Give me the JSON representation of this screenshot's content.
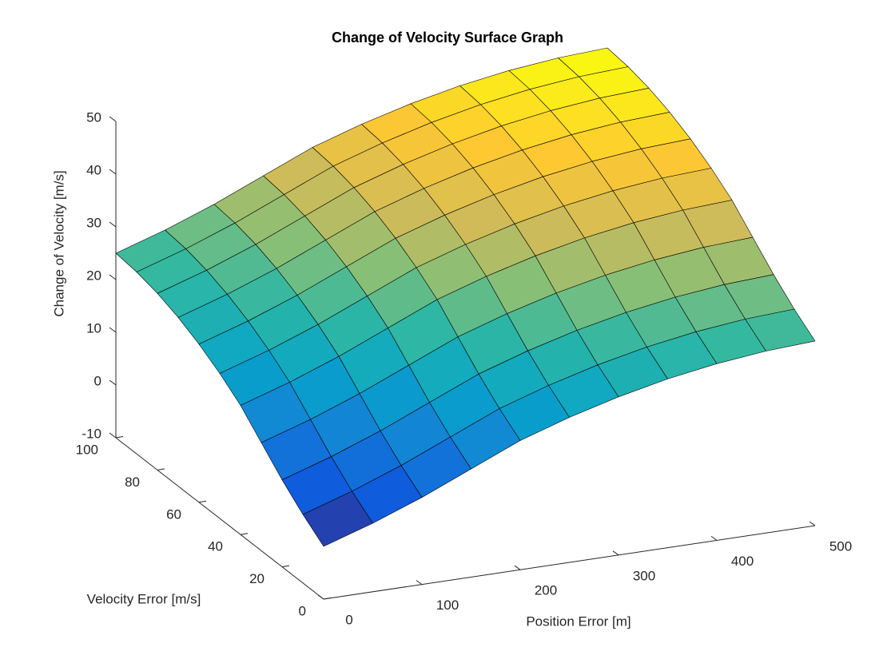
{
  "chart_data": {
    "type": "surface",
    "title": "Change of Velocity Surface Graph",
    "xlabel": "Position Error [m]",
    "ylabel": "Velocity Error [m/s]",
    "zlabel": "Change of Velocity [m/s]",
    "colormap": "parula",
    "x": [
      0,
      50,
      100,
      150,
      200,
      250,
      300,
      350,
      400,
      450,
      500
    ],
    "y": [
      0,
      10,
      20,
      30,
      40,
      50,
      60,
      70,
      80,
      90,
      100
    ],
    "z": [
      [
        0,
        3,
        6.5,
        10.5,
        14.5,
        17.5,
        20,
        22,
        23.5,
        24.5,
        25
      ],
      [
        3,
        6,
        9.5,
        13.5,
        17.5,
        20.5,
        23,
        25,
        26.5,
        27.5,
        28
      ],
      [
        6.5,
        9.5,
        13,
        17,
        21,
        24,
        26.5,
        28.5,
        30,
        31,
        31.5
      ],
      [
        10.5,
        13.5,
        17,
        21,
        25,
        28,
        30.5,
        32.5,
        34,
        35,
        35.5
      ],
      [
        14.5,
        17.5,
        21,
        25,
        29,
        32,
        34.5,
        36.5,
        38,
        39,
        39.5
      ],
      [
        17.5,
        20.5,
        24,
        28,
        32,
        35,
        37.5,
        39.5,
        41,
        42,
        42.5
      ],
      [
        20,
        23,
        26.5,
        30.5,
        34.5,
        37.5,
        40,
        42,
        43.5,
        44.5,
        45
      ],
      [
        22,
        25,
        28.5,
        32.5,
        36.5,
        39.5,
        42,
        44,
        45.5,
        46.5,
        47
      ],
      [
        23.5,
        26.5,
        30,
        34,
        38,
        41,
        43.5,
        45.5,
        47,
        48,
        48.5
      ],
      [
        24.5,
        27.5,
        31,
        35,
        39,
        42,
        44.5,
        46.5,
        48,
        49,
        49.5
      ],
      [
        25,
        28,
        31.5,
        35.5,
        39.5,
        42.5,
        45,
        47,
        48.5,
        49.5,
        50
      ]
    ],
    "xlim": [
      0,
      500
    ],
    "xticks": [
      0,
      100,
      200,
      300,
      400,
      500
    ],
    "ylim": [
      0,
      100
    ],
    "yticks": [
      0,
      20,
      40,
      60,
      80,
      100
    ],
    "zlim": [
      -10,
      50
    ],
    "zticks": [
      -10,
      0,
      10,
      20,
      30,
      40,
      50
    ]
  }
}
